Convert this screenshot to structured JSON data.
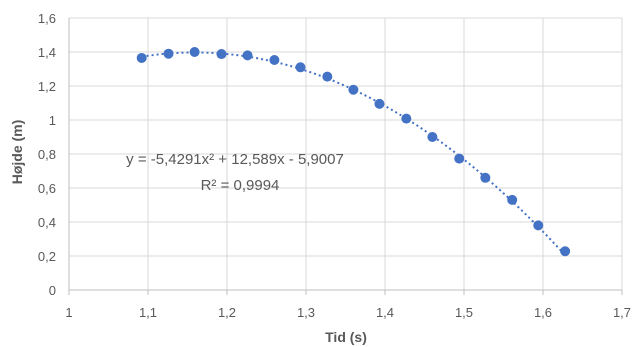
{
  "chart_data": {
    "type": "scatter",
    "title": "",
    "xlabel": "Tid (s)",
    "ylabel": "Højde (m)",
    "xlim": [
      1,
      1.7
    ],
    "ylim": [
      0,
      1.6
    ],
    "x_ticks": [
      "1",
      "1,1",
      "1,2",
      "1,3",
      "1,4",
      "1,5",
      "1,6",
      "1,7"
    ],
    "y_ticks": [
      "0",
      "0,2",
      "0,4",
      "0,6",
      "0,8",
      "1",
      "1,2",
      "1,4",
      "1,6"
    ],
    "grid": true,
    "series": [
      {
        "color": "#4472c4",
        "x": [
          1.092,
          1.126,
          1.159,
          1.193,
          1.226,
          1.26,
          1.293,
          1.327,
          1.36,
          1.393,
          1.427,
          1.46,
          1.494,
          1.527,
          1.561,
          1.594,
          1.628
        ],
        "y": [
          1.365,
          1.39,
          1.4,
          1.388,
          1.38,
          1.353,
          1.31,
          1.255,
          1.178,
          1.095,
          1.008,
          0.9,
          0.773,
          0.66,
          0.53,
          0.38,
          0.228
        ]
      }
    ],
    "trendline": {
      "type": "polynomial",
      "coefficients": [
        -5.4291,
        12.589,
        -5.9007
      ],
      "equation": "y = -5,4291x² + 12,589x - 5,9007",
      "r_squared": "R² = 0,9994",
      "style": "dotted"
    }
  }
}
